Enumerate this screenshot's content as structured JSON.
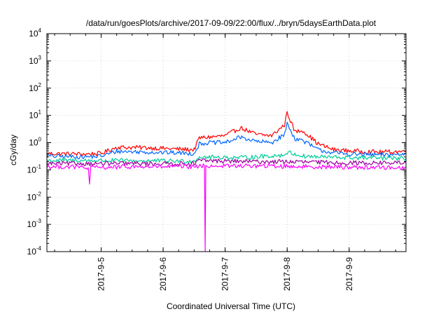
{
  "chart_data": {
    "type": "line",
    "title": "/data/run/goesPlots/archive/2017-09-09/22:00/flux/../bryn/5daysEarthData.plot",
    "xlabel": "Coordinated Universal Time (UTC)",
    "ylabel": "cGy/day",
    "yscale": "log",
    "ylim": [
      0.0001,
      10000
    ],
    "xlim": [
      "2017-09-04 03:00",
      "2017-09-09 22:00"
    ],
    "grid": true,
    "legend": "none",
    "y_ticks": [
      {
        "value": 10000,
        "base": "10",
        "exp": "4"
      },
      {
        "value": 1000,
        "base": "10",
        "exp": "3"
      },
      {
        "value": 100,
        "base": "10",
        "exp": "2"
      },
      {
        "value": 10,
        "base": "10",
        "exp": "1"
      },
      {
        "value": 1,
        "base": "10",
        "exp": "0"
      },
      {
        "value": 0.1,
        "base": "10",
        "exp": "-1"
      },
      {
        "value": 0.01,
        "base": "10",
        "exp": "-2"
      },
      {
        "value": 0.001,
        "base": "10",
        "exp": "-3"
      },
      {
        "value": 0.0001,
        "base": "10",
        "exp": "-4"
      }
    ],
    "x_ticks": [
      "2017-9-5",
      "2017-9-6",
      "2017-9-7",
      "2017-9-8",
      "2017-9-9"
    ],
    "series": [
      {
        "color": "#ff0000",
        "x": [
          "2017-09-04 03:00",
          "2017-09-04 18:00",
          "2017-09-05 00:00",
          "2017-09-05 06:00",
          "2017-09-05 18:00",
          "2017-09-06 06:00",
          "2017-09-06 12:00",
          "2017-09-06 14:00",
          "2017-09-06 18:00",
          "2017-09-07 00:00",
          "2017-09-07 06:00",
          "2017-09-07 12:00",
          "2017-09-07 18:00",
          "2017-09-07 23:00",
          "2017-09-08 00:00",
          "2017-09-08 03:00",
          "2017-09-08 06:00",
          "2017-09-08 12:00",
          "2017-09-08 18:00",
          "2017-09-09 00:00",
          "2017-09-09 12:00",
          "2017-09-09 22:00"
        ],
        "y": [
          0.4,
          0.38,
          0.4,
          0.68,
          0.65,
          0.58,
          0.55,
          1.5,
          1.6,
          1.8,
          3.5,
          2.0,
          1.8,
          4.5,
          13.0,
          2.5,
          2.8,
          0.9,
          0.55,
          0.5,
          0.45,
          0.48
        ]
      },
      {
        "color": "#0066ff",
        "x": [
          "2017-09-04 03:00",
          "2017-09-04 18:00",
          "2017-09-05 00:00",
          "2017-09-05 06:00",
          "2017-09-05 18:00",
          "2017-09-06 06:00",
          "2017-09-06 12:00",
          "2017-09-06 14:00",
          "2017-09-06 18:00",
          "2017-09-07 00:00",
          "2017-09-07 06:00",
          "2017-09-07 12:00",
          "2017-09-07 18:00",
          "2017-09-07 23:00",
          "2017-09-08 00:00",
          "2017-09-08 03:00",
          "2017-09-08 06:00",
          "2017-09-08 12:00",
          "2017-09-08 18:00",
          "2017-09-09 00:00",
          "2017-09-09 12:00",
          "2017-09-09 22:00"
        ],
        "y": [
          0.32,
          0.3,
          0.32,
          0.48,
          0.45,
          0.42,
          0.4,
          0.9,
          1.0,
          1.0,
          1.6,
          1.1,
          1.0,
          2.0,
          5.0,
          1.4,
          1.2,
          0.55,
          0.42,
          0.38,
          0.35,
          0.38
        ]
      },
      {
        "color": "#00cc99",
        "x": [
          "2017-09-04 03:00",
          "2017-09-05 00:00",
          "2017-09-06 12:00",
          "2017-09-06 14:00",
          "2017-09-07 06:00",
          "2017-09-07 23:00",
          "2017-09-08 00:00",
          "2017-09-08 06:00",
          "2017-09-08 12:00",
          "2017-09-09 00:00",
          "2017-09-09 22:00"
        ],
        "y": [
          0.22,
          0.22,
          0.21,
          0.3,
          0.28,
          0.35,
          0.45,
          0.32,
          0.3,
          0.28,
          0.26
        ]
      },
      {
        "color": "#990099",
        "x": [
          "2017-09-04 03:00",
          "2017-09-05 00:00",
          "2017-09-06 12:00",
          "2017-09-06 14:00",
          "2017-09-07 12:00",
          "2017-09-08 00:00",
          "2017-09-09 00:00",
          "2017-09-09 22:00"
        ],
        "y": [
          0.17,
          0.17,
          0.17,
          0.22,
          0.2,
          0.2,
          0.18,
          0.18
        ]
      },
      {
        "color": "#ff00ff",
        "x": [
          "2017-09-04 03:00",
          "2017-09-04 12:00",
          "2017-09-04 19:00",
          "2017-09-04 19:30",
          "2017-09-04 20:00",
          "2017-09-05 12:00",
          "2017-09-06 12:00",
          "2017-09-06 16:00",
          "2017-09-06 16:15",
          "2017-09-06 16:30",
          "2017-09-07 12:00",
          "2017-09-08 12:00",
          "2017-09-09 22:00"
        ],
        "y": [
          0.13,
          0.13,
          0.12,
          0.03,
          0.12,
          0.13,
          0.13,
          0.14,
          0.0001,
          0.14,
          0.14,
          0.13,
          0.12
        ]
      }
    ]
  }
}
